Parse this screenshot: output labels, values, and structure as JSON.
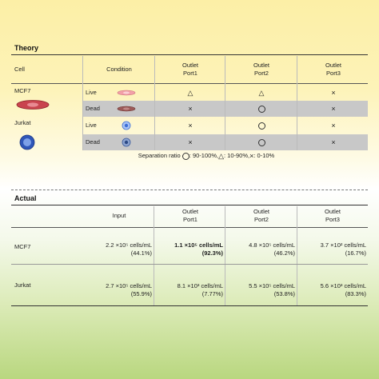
{
  "theory": {
    "title": "Theory",
    "headers": {
      "cell": "Cell",
      "condition": "Condition",
      "port1": "Outlet\nPort1",
      "port2": "Outlet\nPort2",
      "port3": "Outlet\nPort3"
    },
    "cells": [
      {
        "name": "MCF7",
        "icon": "mcf7-cell-icon",
        "rows": [
          {
            "condition": "Live",
            "icon": "mcf7-live-cell-icon",
            "port1": "△",
            "port2": "△",
            "port3": "×"
          },
          {
            "condition": "Dead",
            "icon": "mcf7-dead-cell-icon",
            "port1": "×",
            "port2": "○",
            "port3": "×"
          }
        ]
      },
      {
        "name": "Jurkat",
        "icon": "jurkat-cell-icon",
        "rows": [
          {
            "condition": "Live",
            "icon": "jurkat-live-cell-icon",
            "port1": "×",
            "port2": "○",
            "port3": "×"
          },
          {
            "condition": "Dead",
            "icon": "jurkat-dead-cell-icon",
            "port1": "×",
            "port2": "○",
            "port3": "×"
          }
        ]
      }
    ],
    "legend": {
      "prefix": "Separation ratio",
      "circle": ": 90-100%, ",
      "triangle": ": 10-90%, ",
      "cross": ": 0-10%"
    }
  },
  "actual": {
    "title": "Actual",
    "headers": {
      "input": "Input",
      "port1": "Outlet\nPort1",
      "port2": "Outlet\nPort2",
      "port3": "Outlet\nPort3"
    },
    "rows": [
      {
        "name": "MCF7",
        "input": {
          "value": "2.2 ×10⁵ cells/mL",
          "pct": "(44.1%)"
        },
        "port1": {
          "value": "1.1 ×10⁵ cells/mL",
          "pct": "(92.3%)"
        },
        "port2": {
          "value": "4.8 ×10⁵ cells/mL",
          "pct": "(46.2%)"
        },
        "port3": {
          "value": "3.7 ×10² cells/mL",
          "pct": "(16.7%)"
        }
      },
      {
        "name": "Jurkat",
        "input": {
          "value": "2.7 ×10⁵ cells/mL",
          "pct": "(55.9%)"
        },
        "port1": {
          "value": "8.1 ×10³ cells/mL",
          "pct": "(7.77%)"
        },
        "port2": {
          "value": "5.5 ×10⁵ cells/mL",
          "pct": "(53.8%)"
        },
        "port3": {
          "value": "5.6 ×10³ cells/mL",
          "pct": "(83.3%)"
        }
      }
    ]
  },
  "colors": {
    "mcf7_live": "#f2a0a8",
    "mcf7_dead": "#9c5a58",
    "jurkat_live": "#3d6fd6",
    "jurkat_dead": "#3a5a9a",
    "gray_row": "#c8c8c8"
  }
}
